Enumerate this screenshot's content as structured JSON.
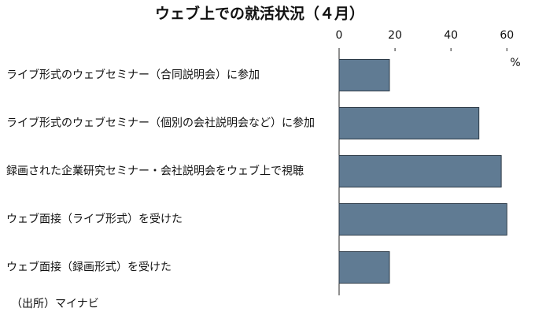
{
  "chart_data": {
    "type": "bar",
    "orientation": "horizontal",
    "title": "ウェブ上での就活状況（４月）",
    "categories": [
      "ライブ形式のウェブセミナー（合同説明会）に参加",
      "ライブ形式のウェブセミナー（個別の会社説明会など）に参加",
      "録画された企業研究セミナー・会社説明会をウェブ上で視聴",
      "ウェブ面接（ライブ形式）を受けた",
      "ウェブ面接（録画形式）を受けた"
    ],
    "values": [
      18,
      50,
      58,
      60,
      18
    ],
    "color": "#607b93",
    "xlim": [
      0,
      65
    ],
    "xticks": [
      0,
      20,
      40,
      60
    ],
    "unit": "%",
    "source": "（出所）マイナビ",
    "grid": false
  }
}
